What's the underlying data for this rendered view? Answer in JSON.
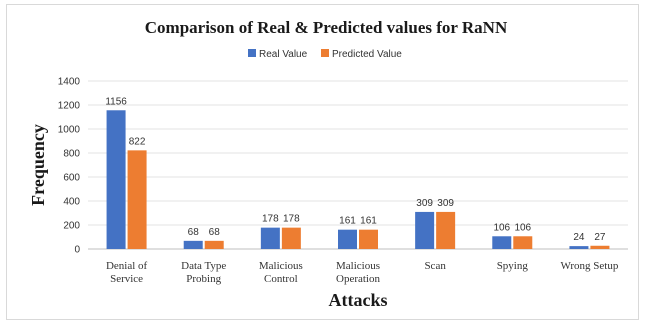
{
  "chart_data": {
    "type": "bar",
    "title": "Comparison of Real & Predicted values for RaNN",
    "xlabel": "Attacks",
    "ylabel": "Frequency",
    "ylim": [
      0,
      1400
    ],
    "yticks": [
      0,
      200,
      400,
      600,
      800,
      1000,
      1200,
      1400
    ],
    "grid": true,
    "legend_position": "top",
    "categories": [
      [
        "Denial of",
        "Service"
      ],
      [
        "Data Type",
        "Probing"
      ],
      [
        "Malicious",
        "Control"
      ],
      [
        "Malicious",
        "Operation"
      ],
      [
        "Scan"
      ],
      [
        "Spying"
      ],
      [
        "Wrong Setup"
      ]
    ],
    "series": [
      {
        "name": "Real Value",
        "color": "#4472c4",
        "values": [
          1156,
          68,
          178,
          161,
          309,
          106,
          24
        ]
      },
      {
        "name": "Predicted Value",
        "color": "#ed7d31",
        "values": [
          822,
          68,
          178,
          161,
          309,
          106,
          27
        ]
      }
    ]
  }
}
